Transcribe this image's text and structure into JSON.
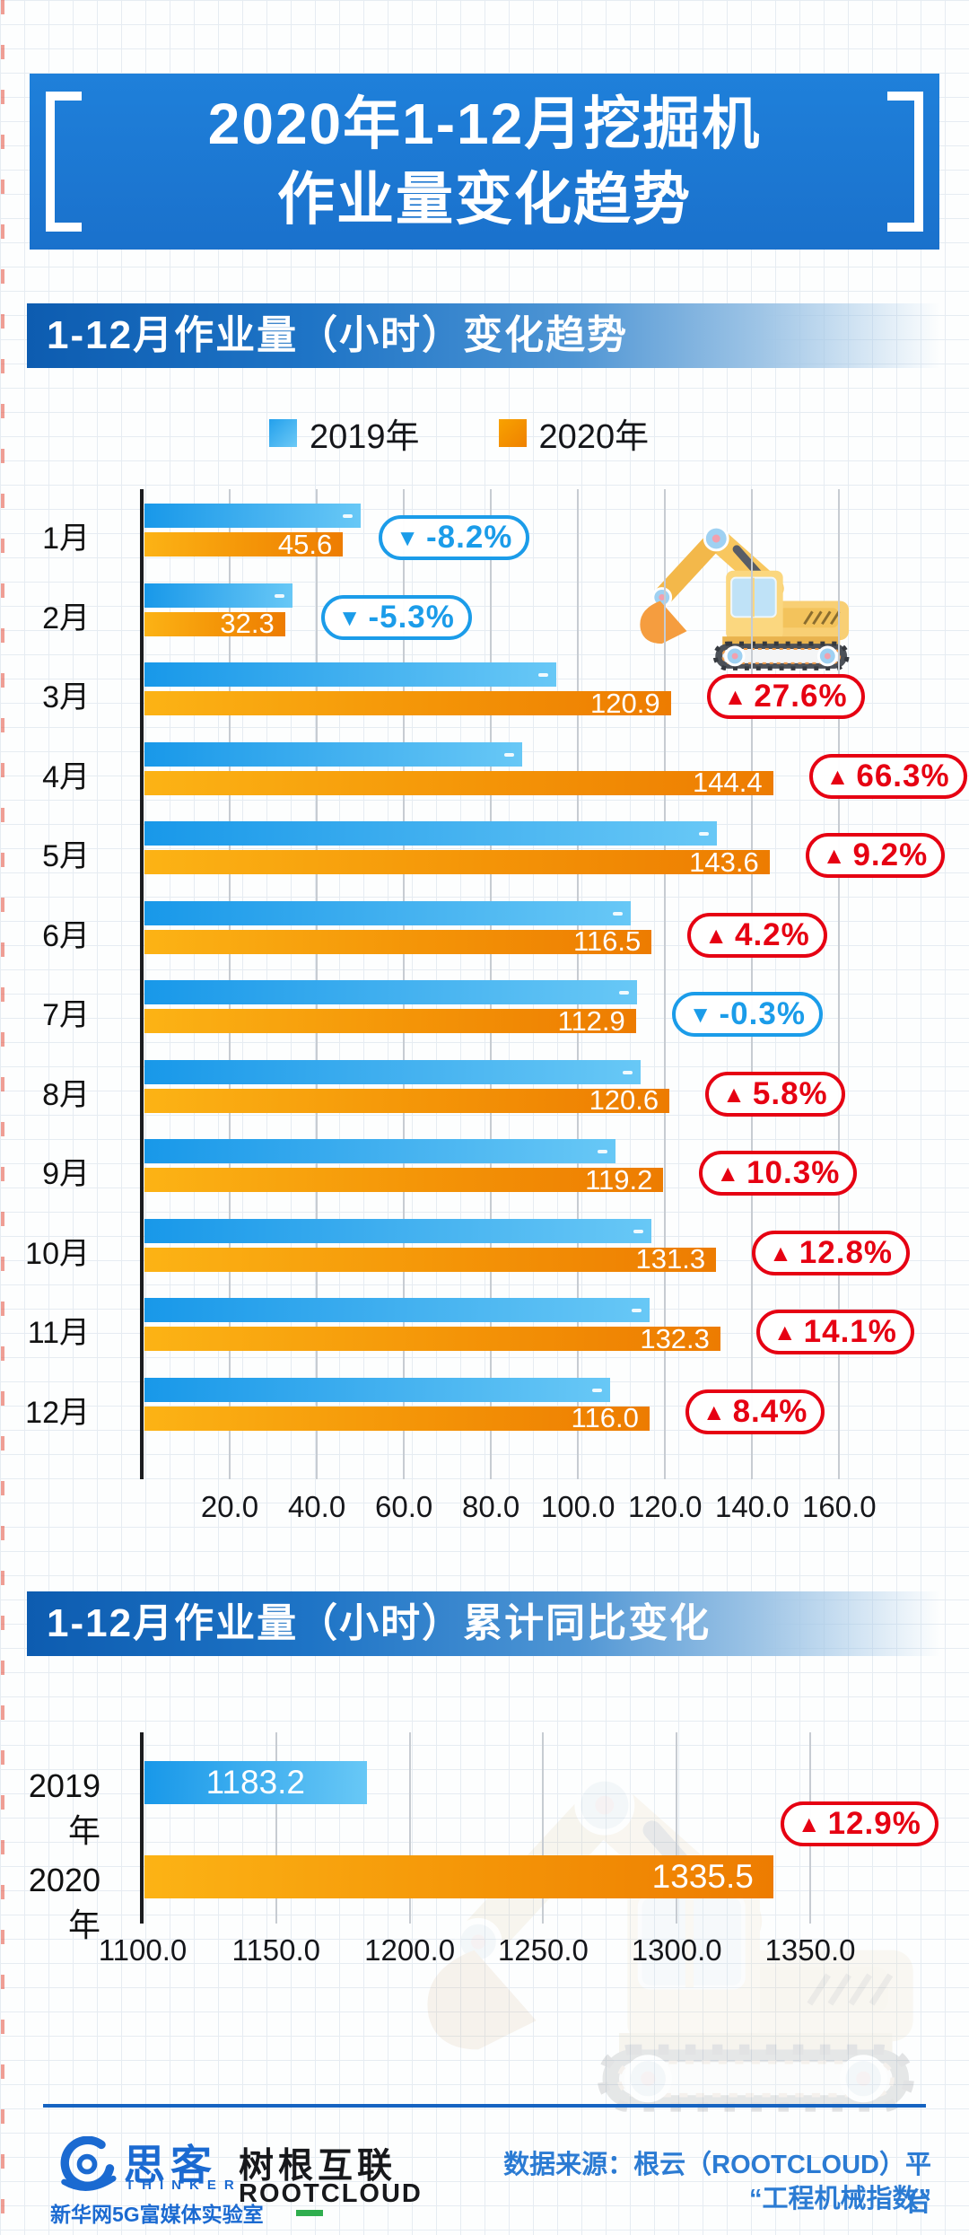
{
  "title": {
    "line1": "2020年1-12月挖掘机",
    "line2": "作业量变化趋势"
  },
  "sections": [
    {
      "header": "1-12月作业量（小时）变化趋势"
    },
    {
      "header": "1-12月作业量（小时）累计同比变化"
    }
  ],
  "chart_data": [
    {
      "type": "bar",
      "orientation": "horizontal",
      "title": "1-12月作业量（小时）变化趋势",
      "categories": [
        "1月",
        "2月",
        "3月",
        "4月",
        "5月",
        "6月",
        "7月",
        "8月",
        "9月",
        "10月",
        "11月",
        "12月"
      ],
      "series": [
        {
          "name": "2019年",
          "color": "#2aa3ec",
          "labels_shown": false,
          "estimated": true,
          "values": [
            49.7,
            34.1,
            94.7,
            86.8,
            131.5,
            111.8,
            113.2,
            114.0,
            108.1,
            116.4,
            116.0,
            107.0
          ]
        },
        {
          "name": "2020年",
          "color": "#f59307",
          "labels_shown": true,
          "values": [
            45.6,
            32.3,
            120.9,
            144.4,
            143.6,
            116.5,
            112.9,
            120.6,
            119.2,
            131.3,
            132.3,
            116.0
          ]
        }
      ],
      "change_badges": [
        {
          "direction": "down",
          "label": "-8.2%"
        },
        {
          "direction": "down",
          "label": "-5.3%"
        },
        {
          "direction": "up",
          "label": "27.6%"
        },
        {
          "direction": "up",
          "label": "66.3%"
        },
        {
          "direction": "up",
          "label": "9.2%"
        },
        {
          "direction": "up",
          "label": "4.2%"
        },
        {
          "direction": "down",
          "label": "-0.3%"
        },
        {
          "direction": "up",
          "label": "5.8%"
        },
        {
          "direction": "up",
          "label": "10.3%"
        },
        {
          "direction": "up",
          "label": "12.8%"
        },
        {
          "direction": "up",
          "label": "14.1%"
        },
        {
          "direction": "up",
          "label": "8.4%"
        }
      ],
      "x_ticks": [
        20,
        40,
        60,
        80,
        100,
        120,
        140,
        160
      ],
      "xlim": [
        0,
        168
      ],
      "grid": true,
      "legend_position": "top",
      "ylabel": "",
      "xlabel": ""
    },
    {
      "type": "bar",
      "orientation": "horizontal",
      "title": "1-12月作业量（小时）累计同比变化",
      "categories": [
        "2019年",
        "2020年"
      ],
      "values": [
        1183.2,
        1335.5
      ],
      "bar_colors": [
        "#2aa3ec",
        "#f59307"
      ],
      "change_badge": {
        "direction": "up",
        "label": "12.9%"
      },
      "x_ticks": [
        1100,
        1150,
        1200,
        1250,
        1300,
        1350
      ],
      "xlim": [
        1100,
        1360
      ],
      "grid": true,
      "ylabel": "",
      "xlabel": ""
    }
  ],
  "colors": {
    "banner_blue": "#1c78d3",
    "section_header_blue": "#0d5cb0",
    "bar_blue_start": "#1898e9",
    "bar_blue_end": "#68c8f6",
    "bar_orange_start": "#fcb315",
    "bar_orange_end": "#ed7c01",
    "badge_red": "#e60012",
    "badge_blue": "#1b9ce9",
    "footer_blue": "#1b6ad1",
    "rootcloud_green": "#2fae4e"
  },
  "footer": {
    "thinker_cn": "思客",
    "thinker_en": "THINKER",
    "thinker_org": "新华网5G富媒体实验室",
    "rootcloud_cn": "树根互联",
    "rootcloud_en": "ROOTCLOUD",
    "source_line1": "数据来源：根云（ROOTCLOUD）平台",
    "source_line2": "“工程机械指数”"
  }
}
